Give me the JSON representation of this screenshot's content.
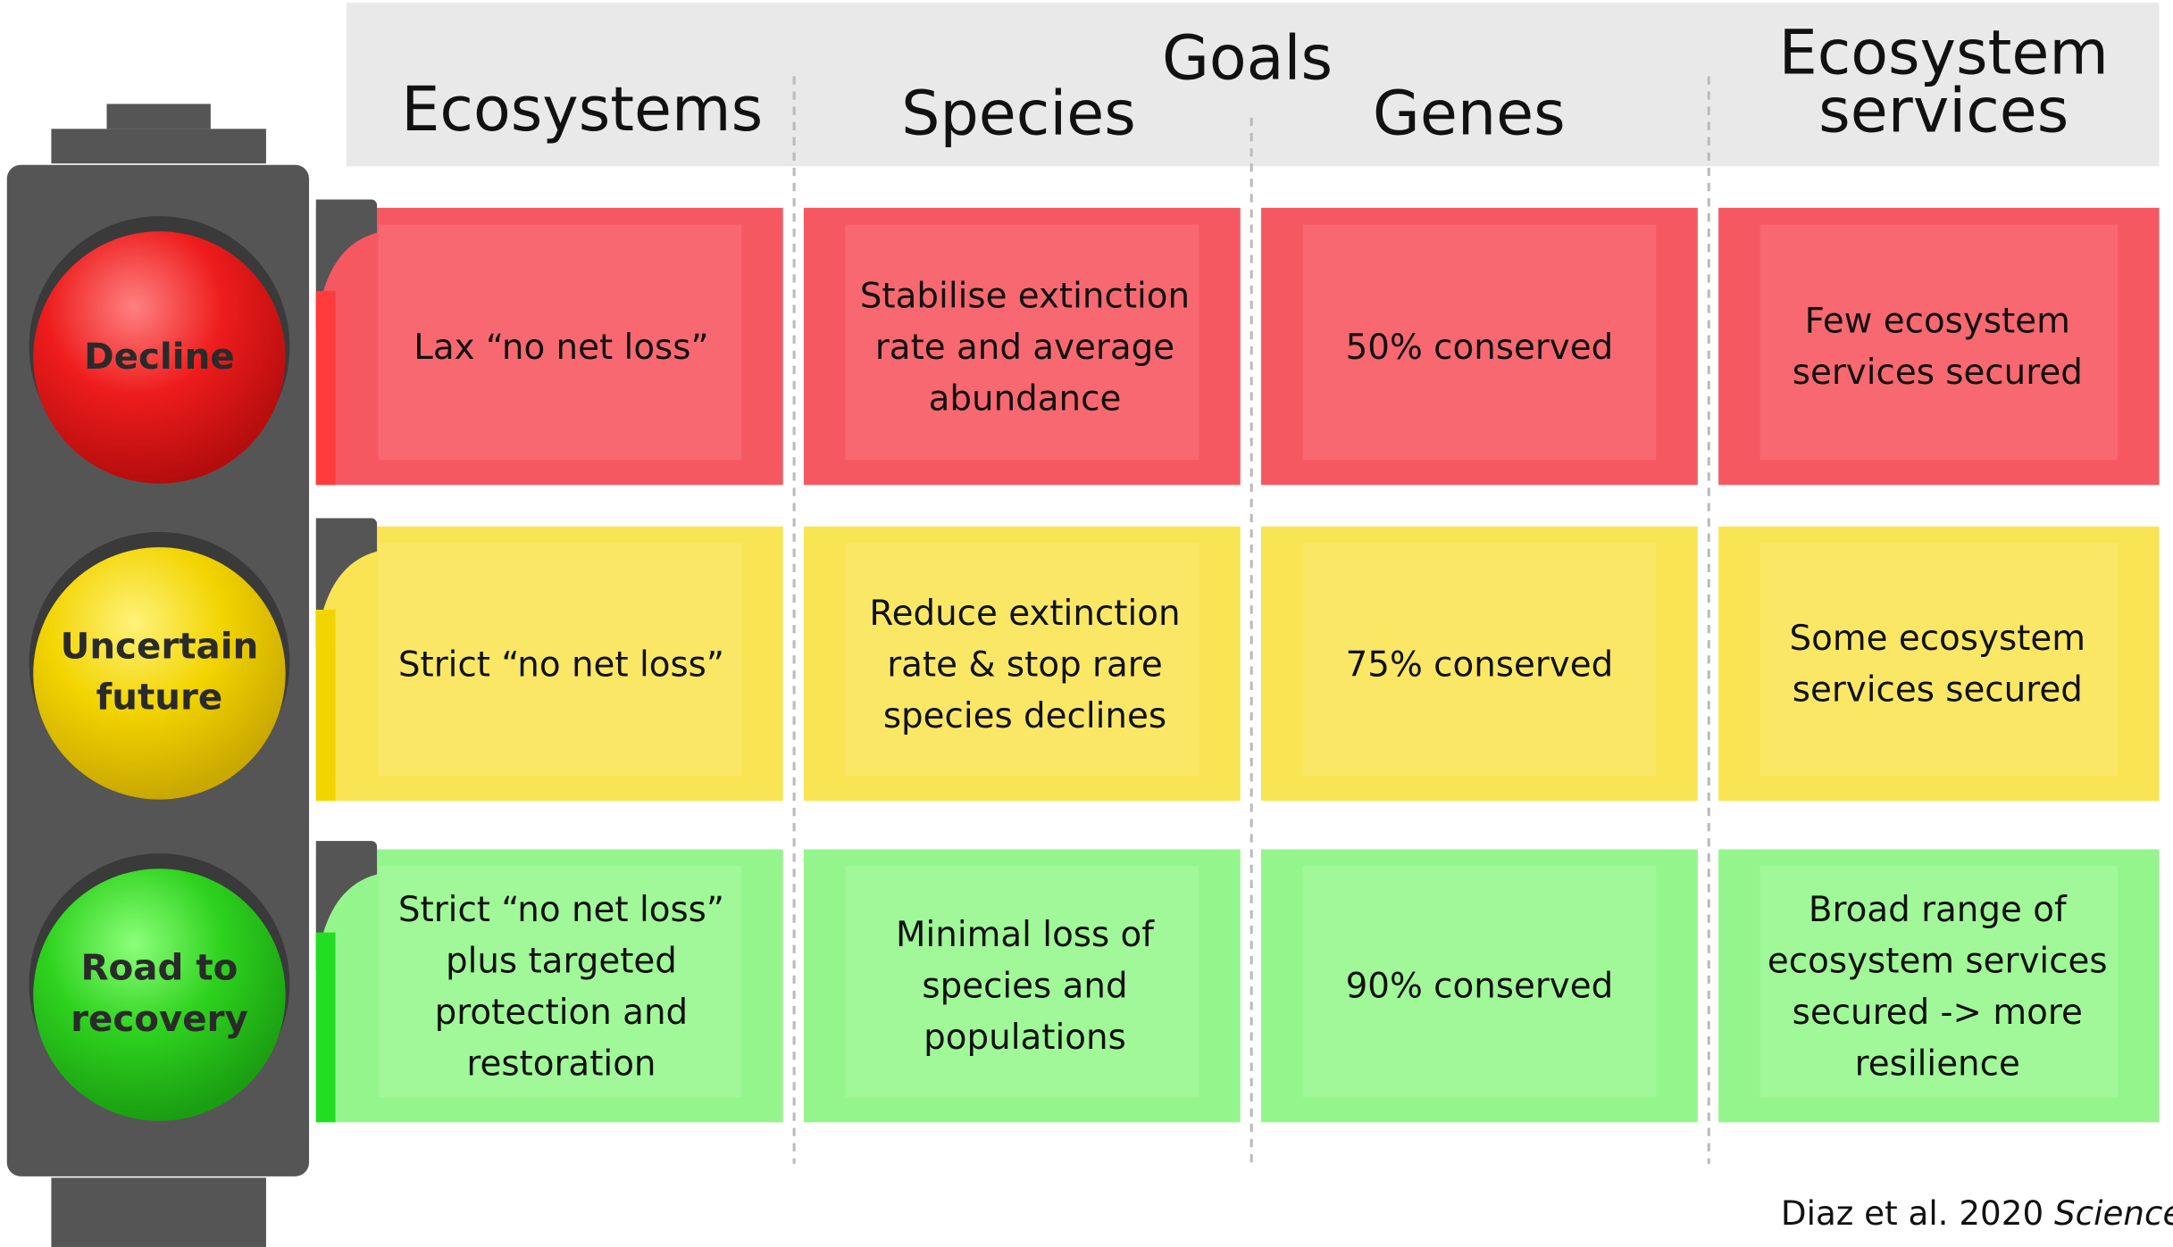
{
  "header": {
    "title": "Goals",
    "columns": [
      "Ecosystems",
      "Species",
      "Genes",
      "Ecosystem services"
    ]
  },
  "rows": [
    {
      "light": "Decline",
      "cells": [
        "Lax “no net loss”",
        "Stabilise extinction rate and average abundance",
        "50% conserved",
        "Few ecosystem services secured"
      ]
    },
    {
      "light": "Uncertain future",
      "cells": [
        "Strict “no net loss”",
        "Reduce extinction rate & stop rare species declines",
        "75% conserved",
        "Some ecosystem services secured"
      ]
    },
    {
      "light": "Road to recovery",
      "cells": [
        "Strict “no net loss” plus targeted protection and restoration",
        "Minimal loss of species and populations",
        "90% conserved",
        "Broad range of ecosystem services secured -> more resilience"
      ]
    }
  ],
  "citation": {
    "text": "Diaz et al. 2020",
    "journal": "Science"
  }
}
